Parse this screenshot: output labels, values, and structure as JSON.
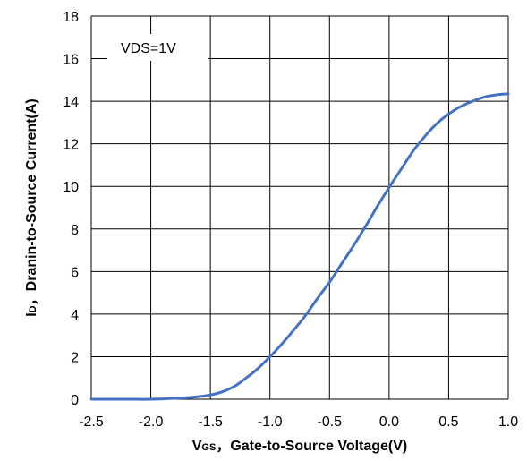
{
  "chart_data": {
    "type": "line",
    "title": "",
    "xlabel_main": "V",
    "xlabel_sub": "GS",
    "xlabel_rest": "，Gate-to-Source Voltage(V)",
    "ylabel_main": "I",
    "ylabel_sub": "D",
    "ylabel_rest": "，Dranin-to-Source Current(A)",
    "xlim": [
      -2.5,
      1.0
    ],
    "ylim": [
      0,
      18
    ],
    "xticks": [
      "-2.5",
      "-2.0",
      "-1.5",
      "-1.0",
      "-0.5",
      "0.0",
      "0.5",
      "1.0"
    ],
    "xtick_values": [
      -2.5,
      -2.0,
      -1.5,
      -1.0,
      -0.5,
      0.0,
      0.5,
      1.0
    ],
    "yticks": [
      "0",
      "2",
      "4",
      "6",
      "8",
      "10",
      "12",
      "14",
      "16",
      "18"
    ],
    "ytick_values": [
      0,
      2,
      4,
      6,
      8,
      10,
      12,
      14,
      16,
      18
    ],
    "grid": true,
    "legend": "none",
    "annotation": "VDS=1V",
    "series": [
      {
        "color": "#4472C4",
        "x": [
          -2.5,
          -2.2,
          -2.0,
          -1.8,
          -1.6,
          -1.5,
          -1.4,
          -1.3,
          -1.2,
          -1.1,
          -1.0,
          -0.9,
          -0.8,
          -0.7,
          -0.6,
          -0.5,
          -0.4,
          -0.3,
          -0.2,
          -0.1,
          0.0,
          0.1,
          0.2,
          0.3,
          0.4,
          0.5,
          0.6,
          0.7,
          0.8,
          0.9,
          1.0
        ],
        "y": [
          0.0,
          0.0,
          0.0,
          0.04,
          0.12,
          0.2,
          0.35,
          0.6,
          1.0,
          1.45,
          2.0,
          2.6,
          3.25,
          3.95,
          4.75,
          5.5,
          6.35,
          7.2,
          8.1,
          9.05,
          9.95,
          10.8,
          11.65,
          12.35,
          12.95,
          13.4,
          13.75,
          14.0,
          14.2,
          14.3,
          14.35
        ]
      }
    ]
  }
}
